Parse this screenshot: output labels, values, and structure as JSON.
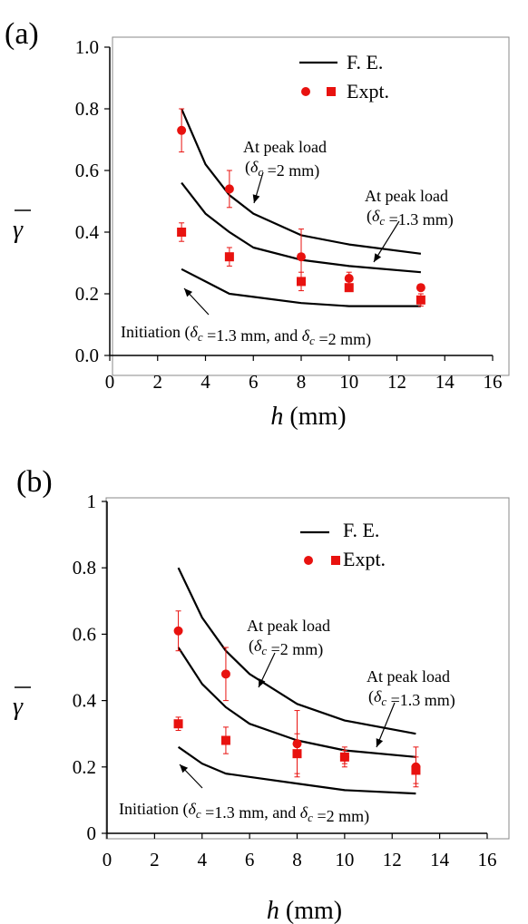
{
  "chart_data": [
    {
      "panel": "(a)",
      "type": "line",
      "xlabel": "h (mm)",
      "ylabel": "γ̄",
      "xlim": [
        0,
        16
      ],
      "ylim": [
        0.0,
        1.0
      ],
      "x_ticks": [
        "0",
        "2",
        "4",
        "6",
        "8",
        "10",
        "12",
        "14",
        "16"
      ],
      "y_ticks": [
        "0.0",
        "0.2",
        "0.4",
        "0.6",
        "0.8",
        "1.0"
      ],
      "grid": false,
      "legend_position": "top-right",
      "legend": {
        "line_label": "F. E.",
        "marker_label": "Expt."
      },
      "series": [
        {
          "name": "At peak load (δc = 2 mm)",
          "style": "line",
          "x": [
            3,
            4,
            5,
            6,
            8,
            10,
            13
          ],
          "y": [
            0.8,
            0.62,
            0.52,
            0.46,
            0.39,
            0.36,
            0.33
          ]
        },
        {
          "name": "At peak load (δc = 1.3 mm)",
          "style": "line",
          "x": [
            3,
            4,
            5,
            6,
            8,
            10,
            13
          ],
          "y": [
            0.56,
            0.46,
            0.4,
            0.35,
            0.31,
            0.29,
            0.27
          ]
        },
        {
          "name": "Initiation (δc = 1.3 mm, and δc = 2 mm)",
          "style": "line",
          "x": [
            3,
            4,
            5,
            6,
            8,
            10,
            13
          ],
          "y": [
            0.28,
            0.24,
            0.2,
            0.19,
            0.17,
            0.16,
            0.16
          ]
        },
        {
          "name": "Expt. (circle)",
          "style": "circle",
          "x": [
            3,
            5,
            8,
            10,
            13
          ],
          "y": [
            0.73,
            0.54,
            0.32,
            0.25,
            0.22
          ],
          "err": [
            0.07,
            0.06,
            0.09,
            0.02,
            0.01
          ]
        },
        {
          "name": "Expt. (square)",
          "style": "square",
          "x": [
            3,
            5,
            8,
            10,
            13
          ],
          "y": [
            0.4,
            0.32,
            0.24,
            0.22,
            0.18
          ],
          "err": [
            0.03,
            0.03,
            0.03,
            0.01,
            0.02
          ]
        }
      ],
      "annotations": [
        {
          "line1": "At peak load",
          "line2": "(δc =2 mm)"
        },
        {
          "line1": "At peak load",
          "line2": "(δc =1.3 mm)"
        },
        {
          "line1": "Initiation (δc =1.3 mm, and δc =2 mm)"
        }
      ]
    },
    {
      "panel": "(b)",
      "type": "line",
      "xlabel": "h (mm)",
      "ylabel": "γ̄",
      "xlim": [
        0,
        16
      ],
      "ylim": [
        0,
        1
      ],
      "x_ticks": [
        "0",
        "2",
        "4",
        "6",
        "8",
        "10",
        "12",
        "14",
        "16"
      ],
      "y_ticks": [
        "0",
        "0.2",
        "0.4",
        "0.6",
        "0.8",
        "1"
      ],
      "grid": false,
      "legend_position": "top-right",
      "legend": {
        "line_label": "F. E.",
        "marker_label": "Expt."
      },
      "series": [
        {
          "name": "At peak load (δc = 2 mm)",
          "style": "line",
          "x": [
            3,
            4,
            5,
            6,
            8,
            10,
            13
          ],
          "y": [
            0.8,
            0.65,
            0.55,
            0.48,
            0.39,
            0.34,
            0.3
          ]
        },
        {
          "name": "At peak load (δc = 1.3 mm)",
          "style": "line",
          "x": [
            3,
            4,
            5,
            6,
            8,
            10,
            13
          ],
          "y": [
            0.56,
            0.45,
            0.38,
            0.33,
            0.28,
            0.25,
            0.23
          ]
        },
        {
          "name": "Initiation (δc = 1.3 mm, and δc = 2 mm)",
          "style": "line",
          "x": [
            3,
            4,
            5,
            6,
            8,
            10,
            13
          ],
          "y": [
            0.26,
            0.21,
            0.18,
            0.17,
            0.15,
            0.13,
            0.12
          ]
        },
        {
          "name": "Expt. (circle)",
          "style": "circle",
          "x": [
            3,
            5,
            8,
            10,
            13
          ],
          "y": [
            0.61,
            0.48,
            0.27,
            0.23,
            0.2
          ],
          "err": [
            0.06,
            0.08,
            0.1,
            0.03,
            0.06
          ]
        },
        {
          "name": "Expt. (square)",
          "style": "square",
          "x": [
            3,
            5,
            8,
            10,
            13
          ],
          "y": [
            0.33,
            0.28,
            0.24,
            0.23,
            0.19
          ],
          "err": [
            0.02,
            0.04,
            0.06,
            0.02,
            0.04
          ]
        }
      ],
      "annotations": [
        {
          "line1": "At peak load",
          "line2": "(δc =2 mm)"
        },
        {
          "line1": "At peak load",
          "line2": "(δc =1.3 mm)"
        },
        {
          "line1": "Initiation (δc =1.3 mm, and δc =2 mm)"
        }
      ]
    }
  ],
  "colors": {
    "line": "#000000",
    "markers": "#e8120f",
    "axes": "#000000",
    "frame": "#888888"
  }
}
